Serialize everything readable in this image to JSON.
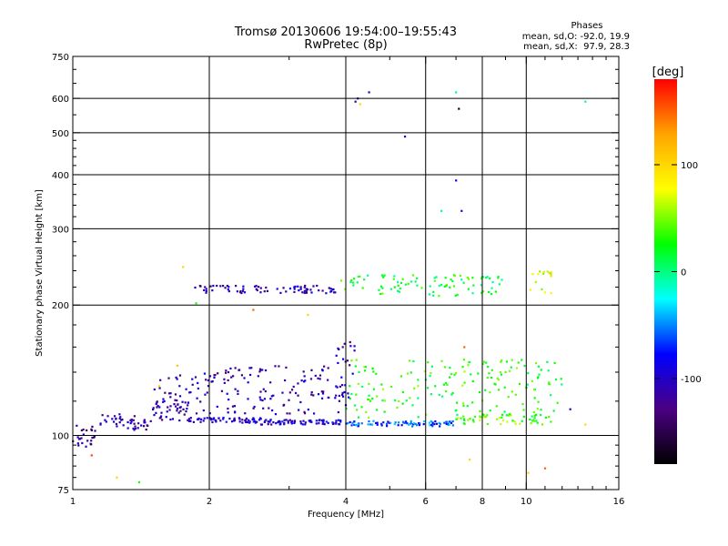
{
  "chart_data": {
    "type": "scatter",
    "title": "Tromsø 20130606 19:54:00–19:55:43",
    "subtitle": "RwPretec (8p)",
    "xlabel": "Frequency [MHz]",
    "ylabel": "Stationary phase Virtual Height [km]",
    "x_scale": "log",
    "y_scale": "log",
    "xlim": [
      1,
      16
    ],
    "ylim": [
      75,
      750
    ],
    "x_ticks": [
      1,
      2,
      4,
      6,
      8,
      10,
      16
    ],
    "y_ticks": [
      75,
      100,
      200,
      300,
      400,
      500,
      600,
      750
    ],
    "grid": true,
    "stats": {
      "heading": "Phases",
      "line_o": "mean, sd,O: -92.0, 19.9",
      "line_x": "mean, sd,X:  97.9, 28.3"
    },
    "colorbar": {
      "label": "[deg]",
      "range": [
        -180,
        180
      ],
      "ticks": [
        100,
        0,
        -100
      ],
      "colors": [
        "#ff0000",
        "#ffa500",
        "#ffff00",
        "#00ff00",
        "#00ffff",
        "#0000ff",
        "#4b0082",
        "#000000"
      ]
    },
    "point_color_default": "#1a1aff",
    "clusters": [
      {
        "x": [
          1.0,
          1.12
        ],
        "y": [
          93,
          107
        ],
        "n": 25,
        "phase": -120
      },
      {
        "x": [
          1.15,
          1.3
        ],
        "y": [
          104,
          112
        ],
        "n": 20,
        "phase": -110
      },
      {
        "x": [
          1.3,
          1.5
        ],
        "y": [
          103,
          111
        ],
        "n": 25,
        "phase": -115
      },
      {
        "x": [
          1.5,
          1.8
        ],
        "y": [
          108,
          122
        ],
        "n": 35,
        "phase": -110
      },
      {
        "x": [
          1.5,
          2.0
        ],
        "y": [
          112,
          140
        ],
        "n": 45,
        "phase": -110
      },
      {
        "x": [
          1.8,
          2.6
        ],
        "y": [
          107,
          110
        ],
        "n": 60,
        "phase": -100
      },
      {
        "x": [
          2.6,
          4.0
        ],
        "y": [
          106,
          109
        ],
        "n": 70,
        "phase": -95
      },
      {
        "x": [
          4.0,
          7.0
        ],
        "y": [
          105,
          108
        ],
        "n": 80,
        "phase": -60
      },
      {
        "x": [
          7.0,
          11.5
        ],
        "y": [
          106,
          112
        ],
        "n": 50,
        "phase": 40
      },
      {
        "x": [
          2.0,
          4.0
        ],
        "y": [
          112,
          145
        ],
        "n": 120,
        "phase": -110
      },
      {
        "x": [
          4.0,
          12.0
        ],
        "y": [
          110,
          150
        ],
        "n": 180,
        "phase": 30
      },
      {
        "x": [
          3.8,
          4.2
        ],
        "y": [
          120,
          165
        ],
        "n": 25,
        "phase": -110
      },
      {
        "x": [
          1.85,
          3.8
        ],
        "y": [
          213,
          222
        ],
        "n": 75,
        "phase": -110
      },
      {
        "x": [
          3.8,
          9.0
        ],
        "y": [
          210,
          235
        ],
        "n": 90,
        "phase": 20
      },
      {
        "x": [
          10.2,
          11.4
        ],
        "y": [
          210,
          240
        ],
        "n": 15,
        "phase": 80
      }
    ],
    "outliers": [
      {
        "x": 1.75,
        "y": 245,
        "phase": 100
      },
      {
        "x": 1.87,
        "y": 202,
        "phase": 30
      },
      {
        "x": 2.5,
        "y": 195,
        "phase": 150
      },
      {
        "x": 3.3,
        "y": 190,
        "phase": 100
      },
      {
        "x": 1.1,
        "y": 90,
        "phase": 160
      },
      {
        "x": 1.25,
        "y": 80,
        "phase": 100
      },
      {
        "x": 1.4,
        "y": 78,
        "phase": 30
      },
      {
        "x": 1.55,
        "y": 130,
        "phase": 100
      },
      {
        "x": 1.7,
        "y": 145,
        "phase": 110
      },
      {
        "x": 4.2,
        "y": 590,
        "phase": -100
      },
      {
        "x": 4.25,
        "y": 600,
        "phase": -110
      },
      {
        "x": 4.3,
        "y": 582,
        "phase": 100
      },
      {
        "x": 4.5,
        "y": 620,
        "phase": -100
      },
      {
        "x": 5.4,
        "y": 490,
        "phase": -100
      },
      {
        "x": 7.0,
        "y": 620,
        "phase": 0
      },
      {
        "x": 7.1,
        "y": 568,
        "phase": -170
      },
      {
        "x": 7.0,
        "y": 388,
        "phase": -80
      },
      {
        "x": 6.5,
        "y": 330,
        "phase": 0
      },
      {
        "x": 7.2,
        "y": 330,
        "phase": -100
      },
      {
        "x": 7.3,
        "y": 160,
        "phase": 150
      },
      {
        "x": 7.5,
        "y": 88,
        "phase": 100
      },
      {
        "x": 10.1,
        "y": 82,
        "phase": 100
      },
      {
        "x": 11.0,
        "y": 84,
        "phase": 150
      },
      {
        "x": 13.5,
        "y": 590,
        "phase": 0
      },
      {
        "x": 13.5,
        "y": 106,
        "phase": 100
      },
      {
        "x": 12.5,
        "y": 115,
        "phase": -100
      }
    ]
  }
}
